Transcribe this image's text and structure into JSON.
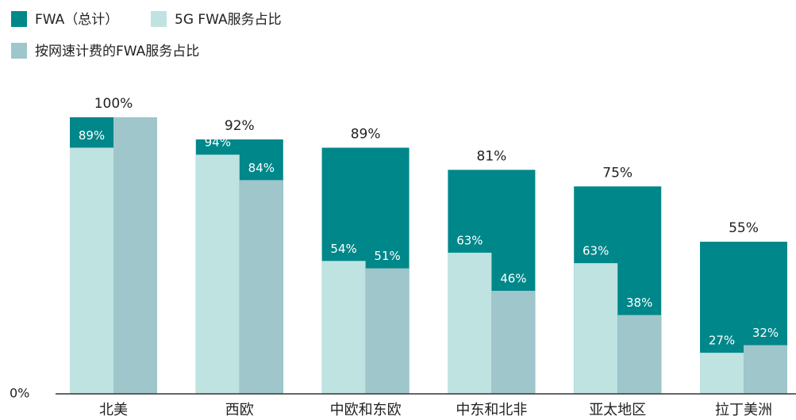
{
  "chart_data": {
    "type": "nested_bar",
    "categories": [
      "北美",
      "西欧",
      "中欧和东欧",
      "中东和北非",
      "亚太地区",
      "拉丁美洲"
    ],
    "series": [
      {
        "name": "FWA（总计）",
        "color": "#00878a",
        "values": [
          100,
          92,
          89,
          81,
          75,
          55
        ],
        "value_labels": [
          "100%",
          "92%",
          "89%",
          "81%",
          "75%",
          "55%"
        ]
      },
      {
        "name": "5G FWA服务占比",
        "color": "#bfe3e1",
        "values": [
          89,
          94,
          54,
          63,
          63,
          27
        ],
        "value_labels": [
          "89%",
          "94%",
          "54%",
          "63%",
          "63%",
          "27%"
        ]
      },
      {
        "name": "按网速计费的FWA服务占比",
        "color": "#9fc6ca",
        "values": [
          100,
          84,
          51,
          46,
          38,
          32
        ],
        "value_labels": [
          null,
          "84%",
          "51%",
          "46%",
          "38%",
          "32%"
        ]
      }
    ],
    "ylim": [
      0,
      100
    ],
    "yticks": [
      {
        "value": 0,
        "label": "0%"
      }
    ]
  }
}
